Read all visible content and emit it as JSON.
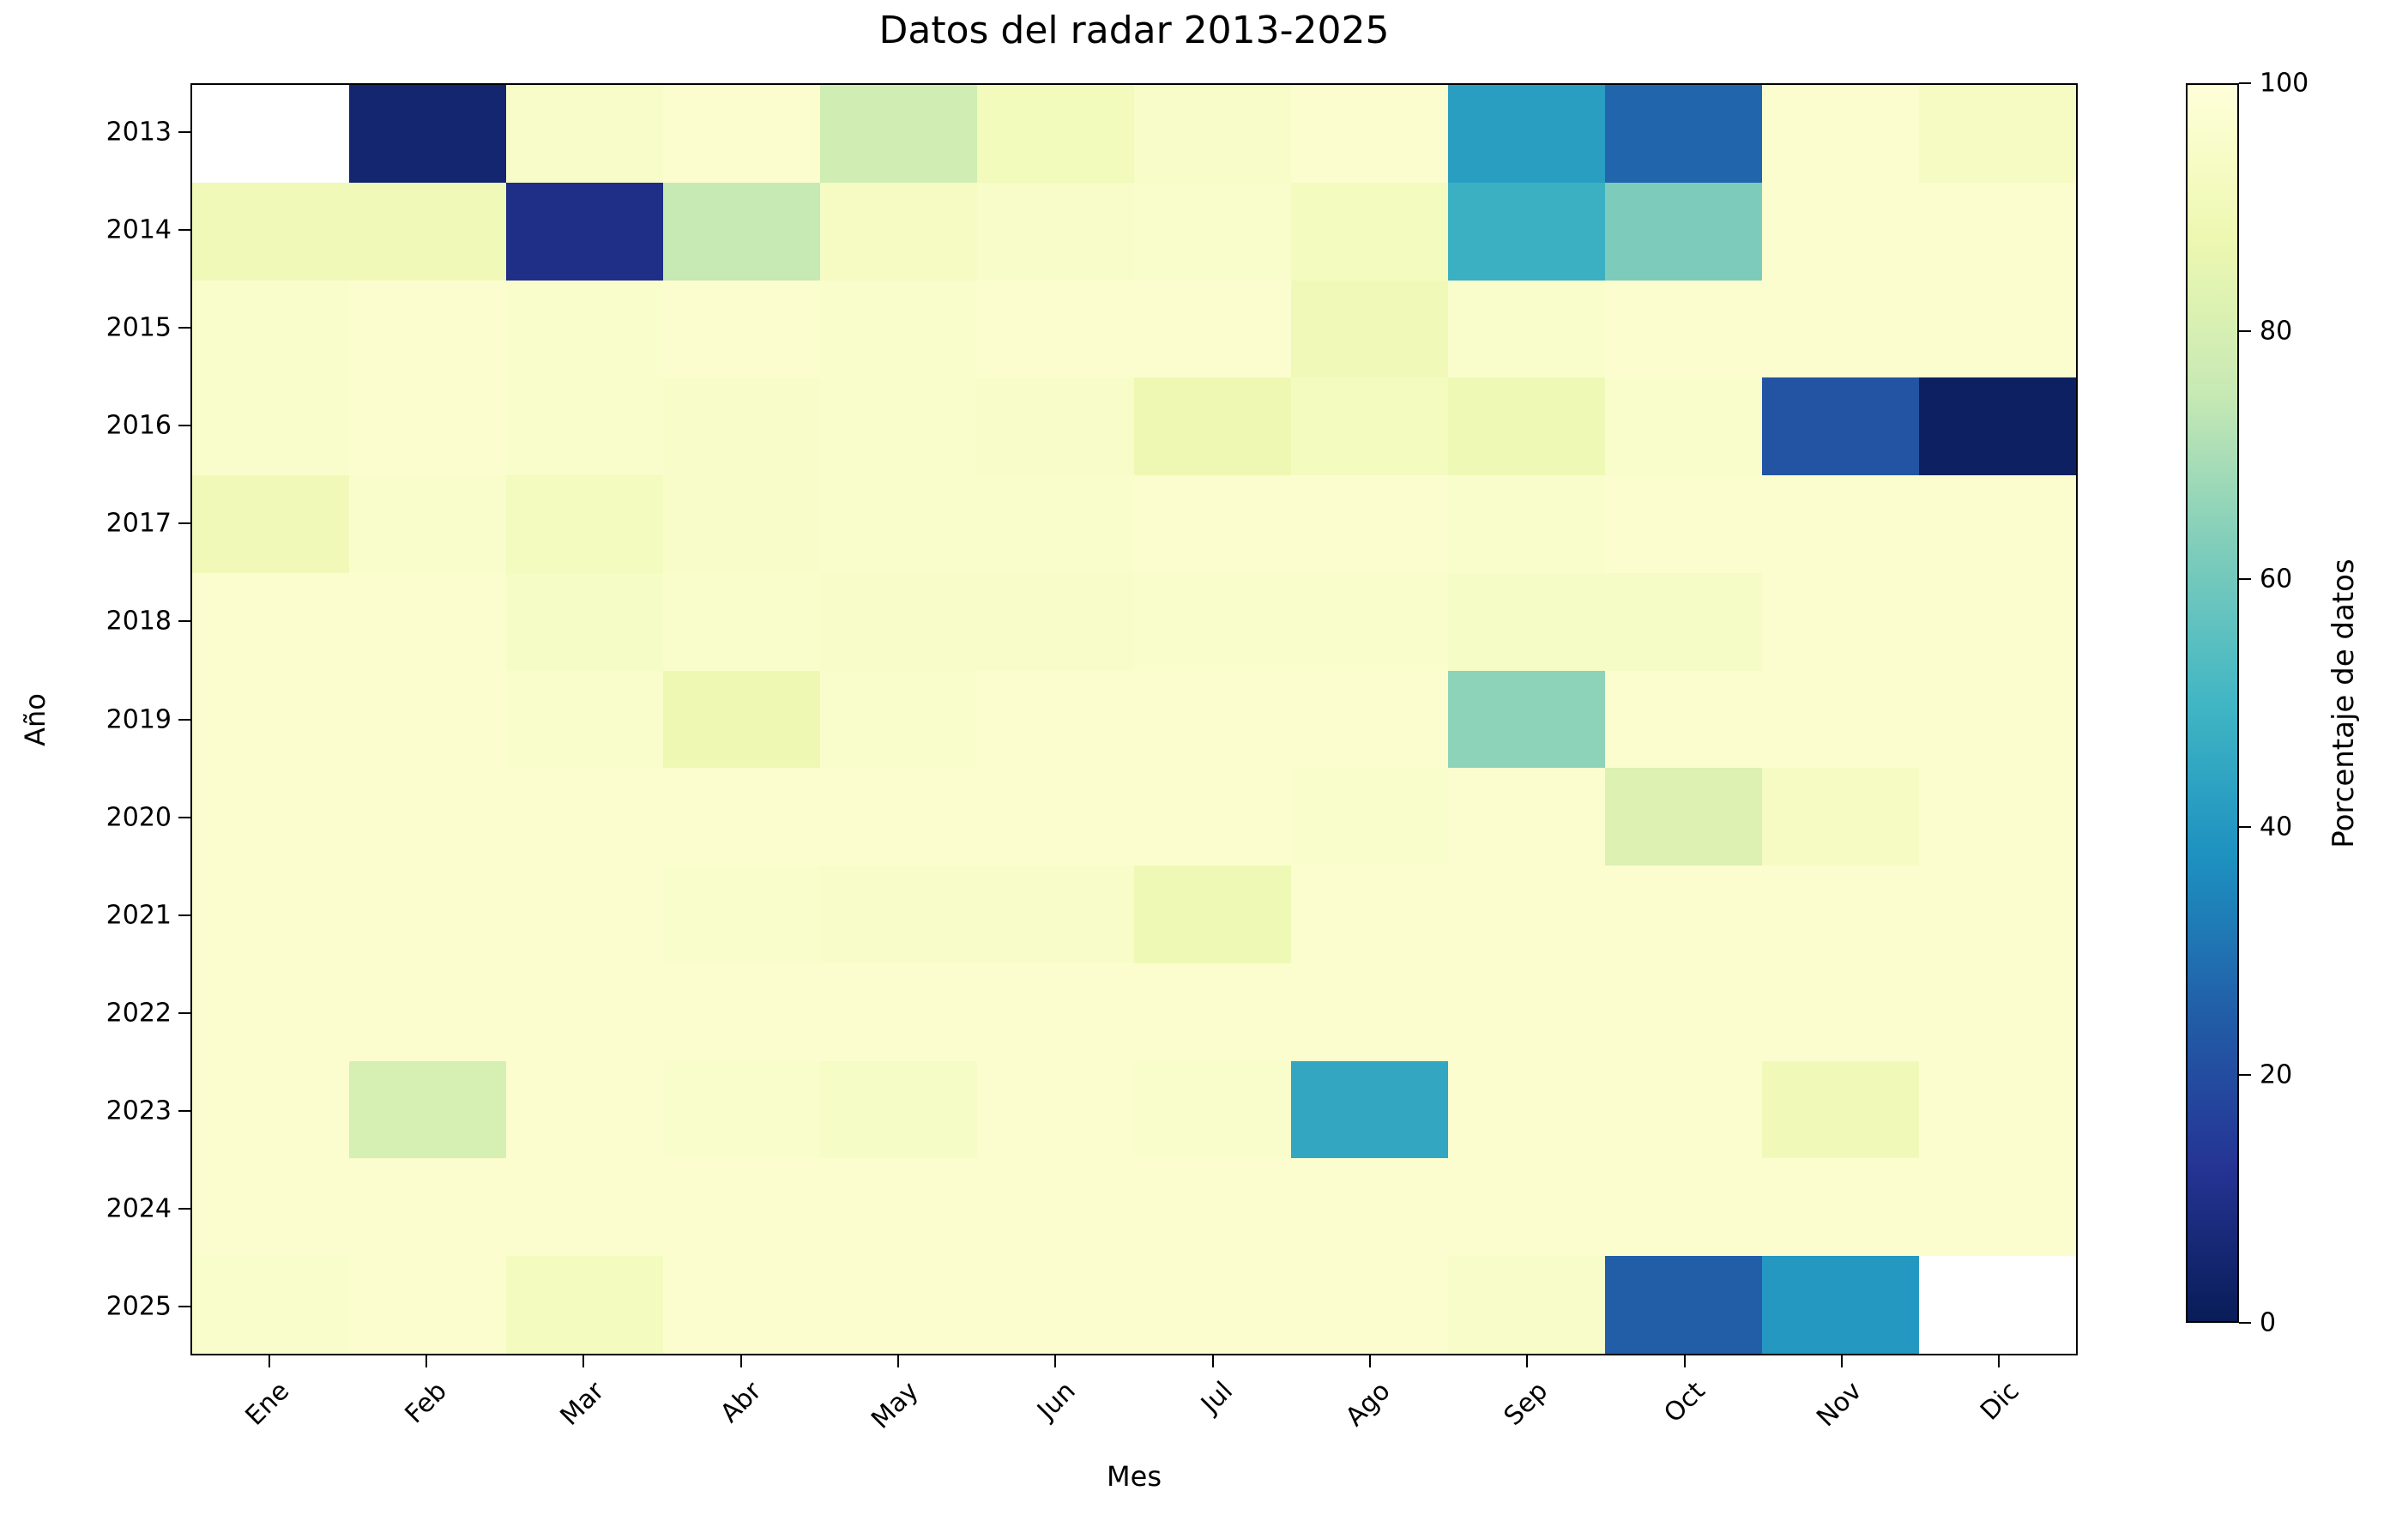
{
  "title": "Datos del radar  2013-2025",
  "chart_data": {
    "type": "heatmap",
    "title": "Datos del radar  2013-2025",
    "xlabel": "Mes",
    "ylabel": "Año",
    "categories": [
      "Ene",
      "Feb",
      "Mar",
      "Abr",
      "May",
      "Jun",
      "Jul",
      "Ago",
      "Sep",
      "Oct",
      "Nov",
      "Dic"
    ],
    "rows": [
      "2013",
      "2014",
      "2015",
      "2016",
      "2017",
      "2018",
      "2019",
      "2020",
      "2021",
      "2022",
      "2023",
      "2024",
      "2025"
    ],
    "values": [
      [
        null,
        5,
        95,
        97,
        78,
        91,
        95,
        97,
        42,
        27,
        97,
        93
      ],
      [
        90,
        90,
        10,
        75,
        93,
        95,
        96,
        92,
        48,
        62,
        97,
        97
      ],
      [
        96,
        97,
        96,
        97,
        96,
        97,
        97,
        90,
        96,
        97,
        97,
        97
      ],
      [
        96,
        97,
        96,
        95,
        96,
        95,
        88,
        92,
        89,
        96,
        22,
        2
      ],
      [
        90,
        96,
        92,
        95,
        96,
        96,
        97,
        97,
        96,
        97,
        97,
        97
      ],
      [
        97,
        97,
        94,
        96,
        95,
        95,
        96,
        96,
        94,
        94,
        97,
        97
      ],
      [
        97,
        97,
        96,
        88,
        96,
        97,
        97,
        97,
        65,
        97,
        97,
        97
      ],
      [
        97,
        97,
        97,
        97,
        97,
        97,
        97,
        96,
        97,
        82,
        93,
        97
      ],
      [
        97,
        97,
        97,
        96,
        95,
        95,
        89,
        97,
        97,
        97,
        97,
        97
      ],
      [
        97,
        97,
        97,
        97,
        97,
        97,
        97,
        97,
        97,
        97,
        97,
        97
      ],
      [
        97,
        80,
        97,
        96,
        94,
        97,
        96,
        45,
        97,
        97,
        90,
        97
      ],
      [
        97,
        97,
        97,
        97,
        97,
        97,
        97,
        97,
        97,
        97,
        97,
        97
      ],
      [
        96,
        97,
        92,
        97,
        97,
        97,
        97,
        97,
        95,
        25,
        40,
        null
      ]
    ],
    "value_range": [
      0,
      100
    ],
    "colorbar": {
      "label": "Porcentaje de datos",
      "ticks": [
        100,
        80,
        60,
        40,
        20,
        0
      ],
      "min": 0,
      "max": 100,
      "colormap": "YlGnBu (100 = light yellow, 0 = dark navy)",
      "missing_color": "#ffffff"
    },
    "grid": false,
    "legend_position": "right-colorbar"
  }
}
